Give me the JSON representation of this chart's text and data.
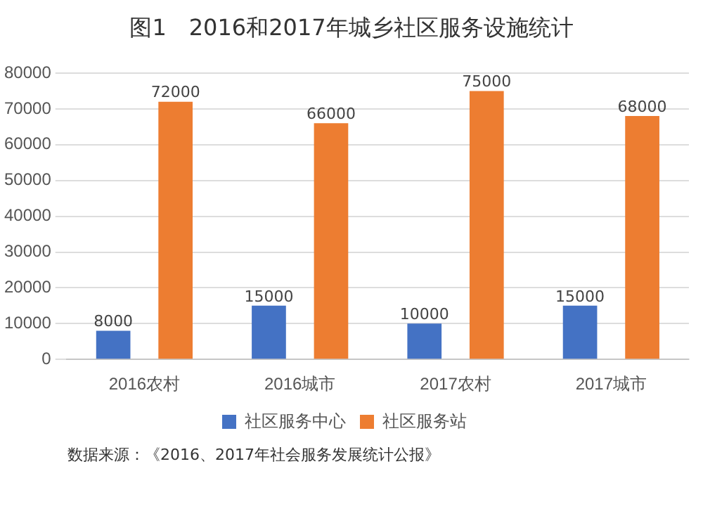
{
  "chart_data": {
    "type": "bar",
    "title": "图1　2016和2017年城乡社区服务设施统计",
    "categories": [
      "2016农村",
      "2016城市",
      "2017农村",
      "2017城市"
    ],
    "series": [
      {
        "name": "社区服务中心",
        "color": "#4472c4",
        "values": [
          8000,
          15000,
          10000,
          15000
        ]
      },
      {
        "name": "社区服务站",
        "color": "#ed7d31",
        "values": [
          72000,
          66000,
          75000,
          68000
        ]
      }
    ],
    "ylim": [
      0,
      80000
    ],
    "yticks": [
      0,
      10000,
      20000,
      30000,
      40000,
      50000,
      60000,
      70000,
      80000
    ],
    "grid": "y",
    "legend": "bottom",
    "data_labels": true,
    "annotations": [
      "数据来源：《2016、2017年社会服务发展统计公报》"
    ]
  }
}
